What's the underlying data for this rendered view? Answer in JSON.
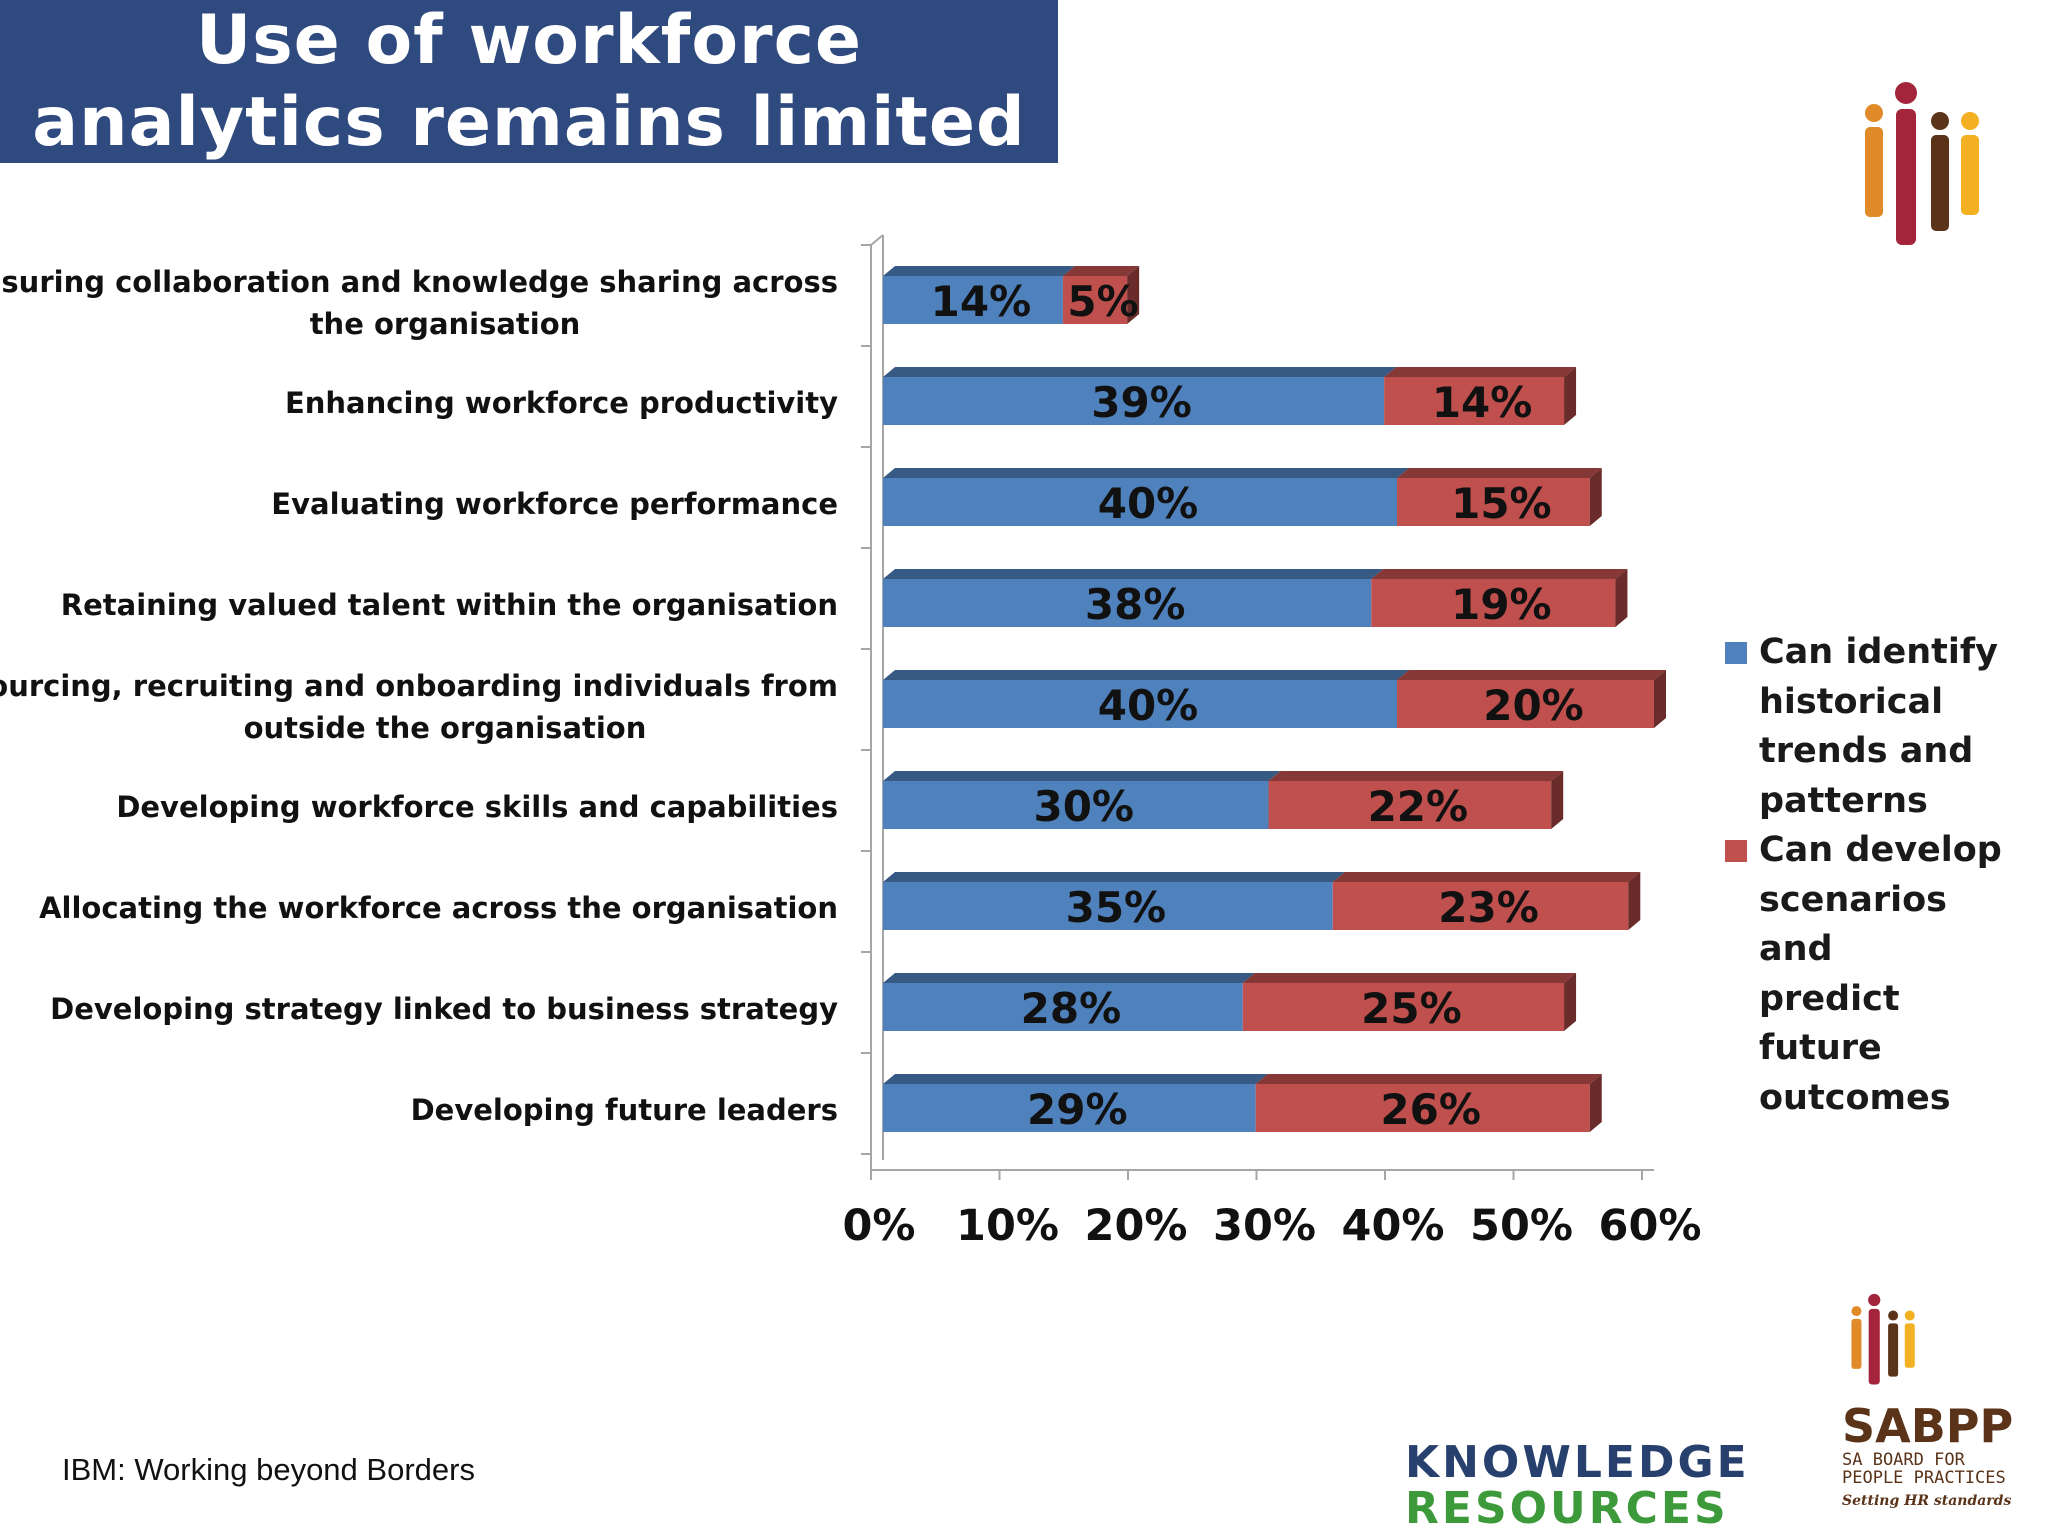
{
  "title": {
    "line1": "Use of workforce",
    "line2": "analytics remains limited"
  },
  "colors": {
    "banner": "#2f4a7f",
    "series1": "#4f81bd",
    "series2": "#c0504d"
  },
  "chart_data": {
    "type": "bar",
    "orientation": "horizontal",
    "stacked": true,
    "three_d": true,
    "categories": [
      "Measuring collaboration and knowledge sharing across the organisation",
      "Enhancing workforce productivity",
      "Evaluating workforce performance",
      "Retaining valued talent within the organisation",
      "Sourcing, recruiting and onboarding individuals from outside the organisation",
      "Developing workforce skills and capabilities",
      "Allocating the workforce across the organisation",
      "Developing strategy linked to business strategy",
      "Developing future leaders"
    ],
    "category_lines": [
      [
        "Measuring collaboration and knowledge sharing across",
        "the organisation"
      ],
      [
        "Enhancing workforce productivity"
      ],
      [
        "Evaluating workforce performance"
      ],
      [
        "Retaining valued talent within the organisation"
      ],
      [
        "Sourcing, recruiting and onboarding individuals from",
        "outside the organisation"
      ],
      [
        "Developing workforce skills and capabilities"
      ],
      [
        "Allocating the workforce across the organisation"
      ],
      [
        "Developing strategy linked to business strategy"
      ],
      [
        "Developing future leaders"
      ]
    ],
    "series": [
      {
        "name": "Can identify historical trends and patterns",
        "color": "#4f81bd",
        "values": [
          14,
          39,
          40,
          38,
          40,
          30,
          35,
          28,
          29
        ],
        "labels": [
          "14%",
          "39%",
          "40%",
          "38%",
          "40%",
          "30%",
          "35%",
          "28%",
          "29%"
        ]
      },
      {
        "name": "Can develop scenarios and predict future outcomes",
        "color": "#c0504d",
        "values": [
          5,
          14,
          15,
          19,
          20,
          22,
          23,
          25,
          26
        ],
        "labels": [
          "5%",
          "14%",
          "15%",
          "19%",
          "20%",
          "22%",
          "23%",
          "25%",
          "26%"
        ]
      }
    ],
    "xlim": [
      0,
      60
    ],
    "xticks": [
      "0%",
      "10%",
      "20%",
      "30%",
      "40%",
      "50%",
      "60%"
    ],
    "legend_position": "right",
    "grid": false
  },
  "legend": {
    "series1_lines": [
      "Can identify",
      "historical",
      "trends and",
      "patterns"
    ],
    "series2_lines": [
      "Can develop",
      "scenarios and",
      "predict future",
      "outcomes"
    ]
  },
  "source": "IBM: Working beyond Borders",
  "logos": {
    "knowledge_resources": {
      "line1": "KNOWLEDGE",
      "line2": "RESOURCES"
    },
    "sabpp": {
      "name": "SABPP",
      "sub1": "SA BOARD FOR",
      "sub2": "PEOPLE PRACTICES",
      "tagline": "Setting HR standards"
    }
  }
}
